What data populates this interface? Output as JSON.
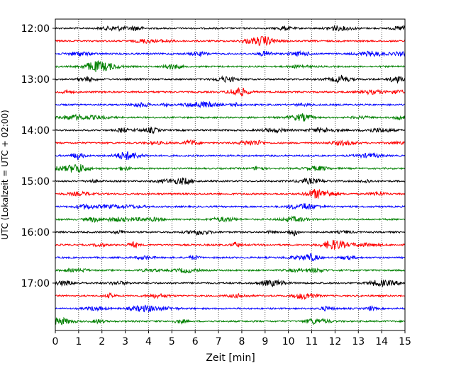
{
  "chart_data": {
    "type": "line",
    "title": "",
    "xlabel": "Zeit  [min]",
    "ylabel": "UTC (Lokalzeit = UTC + 02:00)",
    "xlim": [
      0,
      15
    ],
    "x_ticks": [
      "0",
      "1",
      "2",
      "3",
      "4",
      "5",
      "6",
      "7",
      "8",
      "9",
      "10",
      "11",
      "12",
      "13",
      "14",
      "15"
    ],
    "y_ticks": [
      "12:00",
      "13:00",
      "14:00",
      "15:00",
      "16:00",
      "17:00"
    ],
    "grid": "vertical dotted at each minute",
    "trace_interval_min": 15,
    "series_colors": [
      "#000000",
      "#ff0000",
      "#0000ff",
      "#008000"
    ],
    "traces_utc": [
      "12:00",
      "12:15",
      "12:30",
      "12:45",
      "13:00",
      "13:15",
      "13:30",
      "13:45",
      "14:00",
      "14:15",
      "14:30",
      "14:45",
      "15:00",
      "15:15",
      "15:30",
      "15:45",
      "16:00",
      "16:15",
      "16:30",
      "16:45",
      "17:00",
      "17:15",
      "17:30",
      "17:45"
    ]
  }
}
